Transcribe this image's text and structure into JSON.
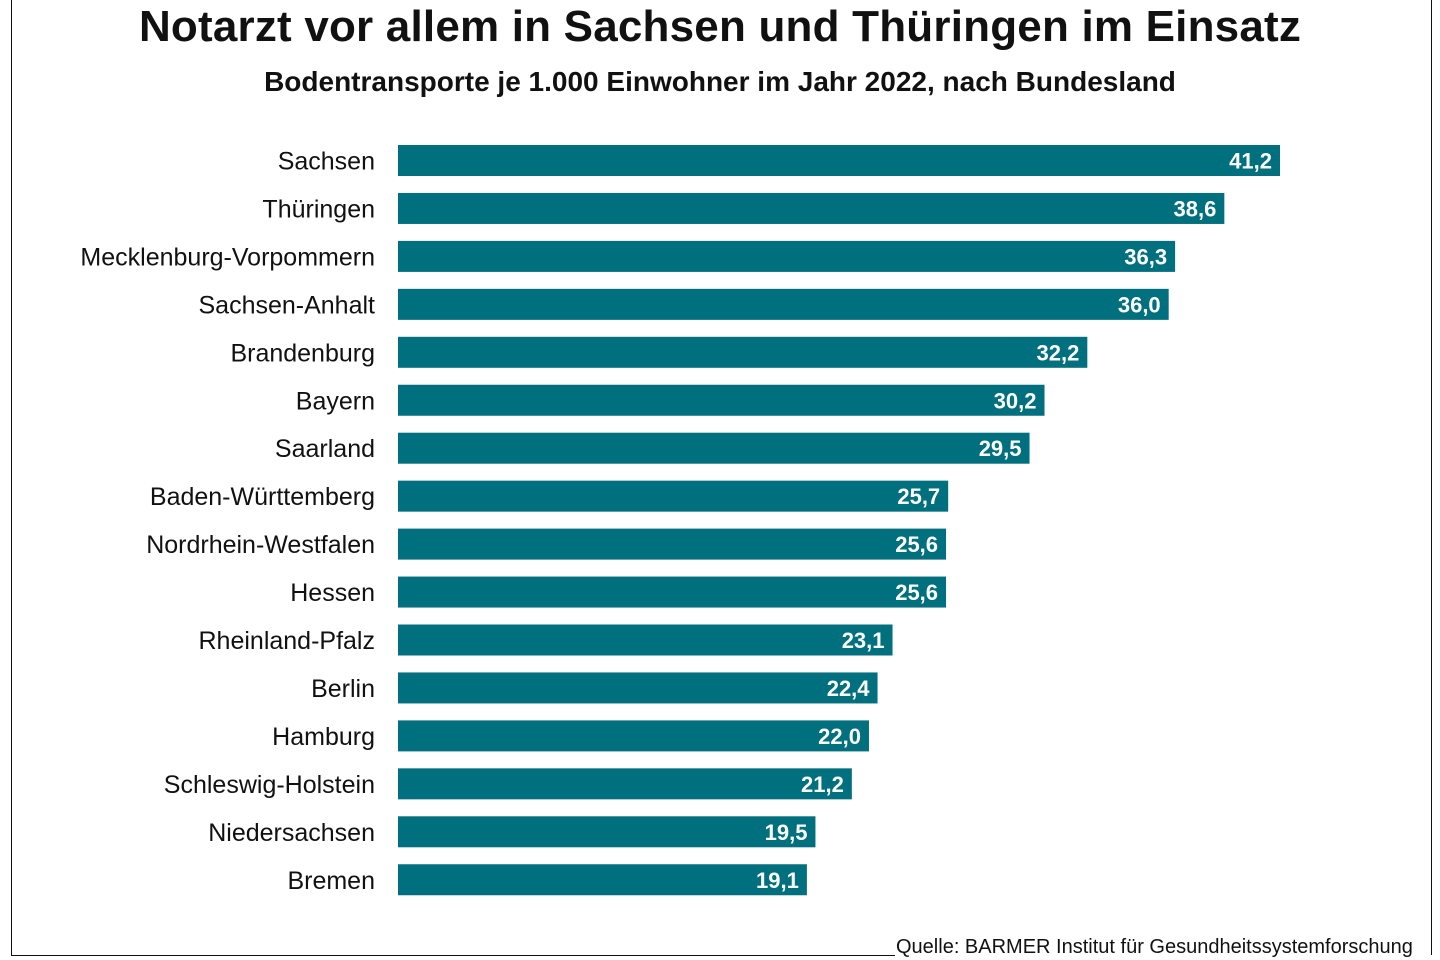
{
  "title": "Notarzt vor allem in Sachsen und Thüringen im Einsatz",
  "subtitle": "Bodentransporte je 1.000 Einwohner im Jahr 2022, nach Bundesland",
  "source": "Quelle: BARMER Institut für Gesundheitssystemforschung",
  "colors": {
    "bar": "#006f7e",
    "bar_label": "#ffffff",
    "text": "#111111"
  },
  "chart_data": {
    "type": "bar",
    "orientation": "horizontal",
    "title": "Notarzt vor allem in Sachsen und Thüringen im Einsatz",
    "subtitle": "Bodentransporte je 1.000 Einwohner im Jahr 2022, nach Bundesland",
    "categories": [
      "Sachsen",
      "Thüringen",
      "Mecklenburg-Vorpommern",
      "Sachsen-Anhalt",
      "Brandenburg",
      "Bayern",
      "Saarland",
      "Baden-Württemberg",
      "Nordrhein-Westfalen",
      "Hessen",
      "Rheinland-Pfalz",
      "Berlin",
      "Hamburg",
      "Schleswig-Holstein",
      "Niedersachsen",
      "Bremen"
    ],
    "values": [
      41.2,
      38.6,
      36.3,
      36.0,
      32.2,
      30.2,
      29.5,
      25.7,
      25.6,
      25.6,
      23.1,
      22.4,
      22.0,
      21.2,
      19.5,
      19.1
    ],
    "value_labels": [
      "41,2",
      "38,6",
      "36,3",
      "36,0",
      "32,2",
      "30,2",
      "29,5",
      "25,7",
      "25,6",
      "25,6",
      "23,1",
      "22,4",
      "22,0",
      "21,2",
      "19,5",
      "19,1"
    ],
    "xlim": [
      0,
      41.2
    ],
    "grid": false,
    "legend": "none"
  }
}
